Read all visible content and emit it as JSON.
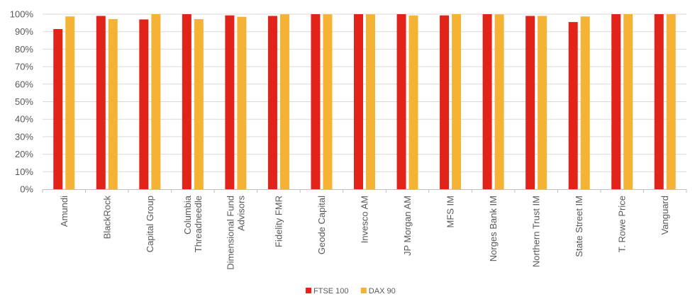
{
  "chart_data": {
    "type": "bar",
    "categories": [
      [
        "Amundi"
      ],
      [
        "BlackRock"
      ],
      [
        "Capital Group"
      ],
      [
        "Columbia",
        "Threadneedle"
      ],
      [
        "Dimensional Fund",
        "Advisors"
      ],
      [
        "Fidelity FMR"
      ],
      [
        "Geode Capital"
      ],
      [
        "Invesco AM"
      ],
      [
        "JP Morgan AM"
      ],
      [
        "MFS IM"
      ],
      [
        "Norges Bank IM"
      ],
      [
        "Northern Trust IM"
      ],
      [
        "State Street IM"
      ],
      [
        "T. Rowe Price"
      ],
      [
        "Vanguard"
      ]
    ],
    "series": [
      {
        "name": "FTSE 100",
        "color": "#e2231a",
        "values": [
          91.5,
          99.0,
          97.0,
          100.0,
          99.3,
          99.0,
          100.0,
          100.0,
          100.0,
          99.3,
          100.0,
          99.0,
          95.5,
          100.0,
          100.0
        ]
      },
      {
        "name": "DAX 90",
        "color": "#f5b335",
        "values": [
          98.7,
          97.2,
          100.0,
          97.2,
          98.5,
          99.9,
          99.9,
          99.9,
          99.3,
          100.0,
          99.9,
          99.0,
          98.7,
          100.0,
          100.0
        ]
      }
    ],
    "y_ticks": [
      "0%",
      "10%",
      "20%",
      "30%",
      "40%",
      "50%",
      "60%",
      "70%",
      "80%",
      "90%",
      "100%"
    ],
    "ylim": [
      0,
      100
    ],
    "legend_position": "bottom",
    "grid": true
  }
}
